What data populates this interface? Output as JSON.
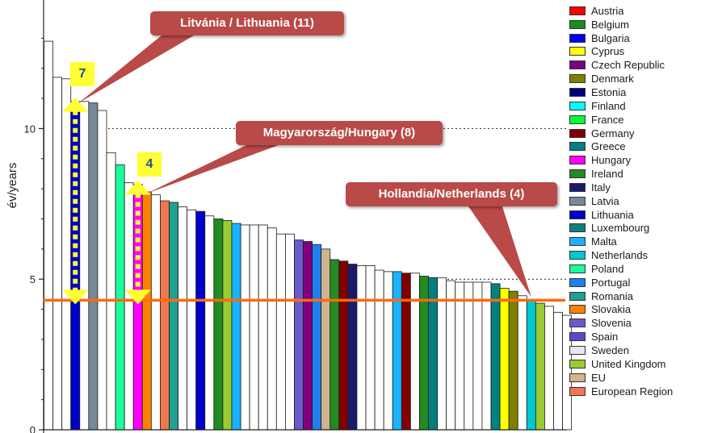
{
  "colors": {
    "accent_line": "#ff6a10",
    "callout_bg": "#b94a48",
    "badge_bg": "#ffff33",
    "badge_text": "#1f4e9e"
  },
  "chart_data": {
    "type": "bar",
    "title": "",
    "xlabel": "",
    "ylabel": "év/years",
    "ylim": [
      0,
      14
    ],
    "yticks": [
      0,
      5,
      10
    ],
    "gridlines": [
      5,
      10
    ],
    "reference_value": 4.3,
    "values": [
      12.9,
      11.7,
      11.65,
      10.9,
      10.9,
      10.85,
      10.6,
      9.2,
      8.8,
      8.2,
      8.15,
      7.9,
      7.8,
      7.6,
      7.55,
      7.4,
      7.3,
      7.25,
      7.1,
      7.0,
      6.95,
      6.85,
      6.8,
      6.8,
      6.8,
      6.7,
      6.5,
      6.5,
      6.3,
      6.25,
      6.15,
      6.0,
      5.65,
      5.6,
      5.5,
      5.45,
      5.45,
      5.3,
      5.25,
      5.25,
      5.2,
      5.2,
      5.1,
      5.05,
      5.05,
      4.95,
      4.9,
      4.9,
      4.9,
      4.9,
      4.85,
      4.7,
      4.6,
      4.45,
      4.3,
      4.2,
      4.1,
      3.9,
      3.8
    ],
    "bar_series": [
      "",
      "",
      "",
      "Lithuania",
      "",
      "Latvia",
      "",
      "",
      "Poland",
      "",
      "Hungary",
      "Slovakia",
      "",
      "European Region",
      "Romania",
      "",
      "",
      "Lithuania",
      "",
      "Ireland",
      "United Kingdom",
      "Malta",
      "",
      "",
      "",
      "",
      "",
      "",
      "Slovenia",
      "Czech Republic",
      "Portugal",
      "EU",
      "Ireland",
      "Germany",
      "Italy",
      "",
      "",
      "",
      "",
      "Malta",
      "Germany",
      "",
      "Ireland",
      "Greece",
      "",
      "",
      "",
      "",
      "",
      "",
      "Greece",
      "Cyprus",
      "Denmark",
      "",
      "Netherlands",
      "United Kingdom",
      "",
      "",
      ""
    ],
    "legend": [
      {
        "label": "Austria",
        "color": "#ff0000"
      },
      {
        "label": "Belgium",
        "color": "#1a8c1a"
      },
      {
        "label": "Bulgaria",
        "color": "#0000ff"
      },
      {
        "label": "Cyprus",
        "color": "#ffff00"
      },
      {
        "label": "Czech Republic",
        "color": "#800080"
      },
      {
        "label": "Denmark",
        "color": "#808000"
      },
      {
        "label": "Estonia",
        "color": "#000080"
      },
      {
        "label": "Finland",
        "color": "#00ffff"
      },
      {
        "label": "France",
        "color": "#00ff33"
      },
      {
        "label": "Germany",
        "color": "#800000"
      },
      {
        "label": "Greece",
        "color": "#008080"
      },
      {
        "label": "Hungary",
        "color": "#ff00ff"
      },
      {
        "label": "Ireland",
        "color": "#228b22"
      },
      {
        "label": "Italy",
        "color": "#1a1a6e"
      },
      {
        "label": "Latvia",
        "color": "#778899"
      },
      {
        "label": "Lithuania",
        "color": "#0000cc"
      },
      {
        "label": "Luxembourg",
        "color": "#0e8080"
      },
      {
        "label": "Malta",
        "color": "#1ab2ff"
      },
      {
        "label": "Netherlands",
        "color": "#00c8d2"
      },
      {
        "label": "Poland",
        "color": "#1aff9c"
      },
      {
        "label": "Portugal",
        "color": "#1e7ff0"
      },
      {
        "label": "Romania",
        "color": "#20a090"
      },
      {
        "label": "Slovakia",
        "color": "#ff8000"
      },
      {
        "label": "Slovenia",
        "color": "#6a5acd"
      },
      {
        "label": "Spain",
        "color": "#5a4ac8"
      },
      {
        "label": "Sweden",
        "color": "#e6e6f0"
      },
      {
        "label": "United Kingdom",
        "color": "#99cc33"
      },
      {
        "label": "EU",
        "color": "#d2b48c"
      },
      {
        "label": "European Region",
        "color": "#f07850"
      }
    ],
    "annotations": [
      {
        "label": "Litvánia / Lithuania (11)",
        "target_bar": 3,
        "range_years": "7"
      },
      {
        "label": "Magyarország/Hungary (8)",
        "target_bar": 10,
        "range_years": "4"
      },
      {
        "label": "Hollandia/Netherlands (4)",
        "target_bar": 54
      }
    ]
  }
}
